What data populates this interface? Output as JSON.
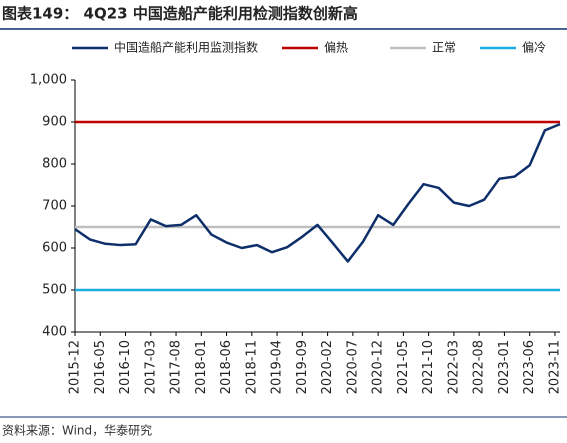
{
  "chart_data": {
    "type": "line",
    "title": "图表149： 4Q23 中国造船产能利用检测指数创新高",
    "source": "资料来源：Wind，华泰研究",
    "x": [
      "2015-12",
      "2016-03",
      "2016-06",
      "2016-09",
      "2016-12",
      "2017-03",
      "2017-06",
      "2017-09",
      "2017-12",
      "2018-03",
      "2018-06",
      "2018-09",
      "2018-12",
      "2019-03",
      "2019-06",
      "2019-09",
      "2019-12",
      "2020-03",
      "2020-06",
      "2020-09",
      "2020-12",
      "2021-03",
      "2021-06",
      "2021-09",
      "2021-12",
      "2022-03",
      "2022-06",
      "2022-09",
      "2022-12",
      "2023-03",
      "2023-06",
      "2023-09",
      "2023-12"
    ],
    "series": [
      {
        "name": "中国造船产能利用监测指数",
        "color": "#0f2f6b",
        "values": [
          645,
          620,
          610,
          607,
          609,
          668,
          652,
          655,
          678,
          632,
          613,
          600,
          607,
          590,
          602,
          627,
          655,
          612,
          568,
          615,
          678,
          655,
          705,
          752,
          743,
          708,
          700,
          715,
          765,
          770,
          797,
          880,
          895
        ]
      }
    ],
    "reference_lines": [
      {
        "name": "偏热",
        "color": "#c00000",
        "value": 900
      },
      {
        "name": "正常",
        "color": "#bfbfbf",
        "value": 650
      },
      {
        "name": "偏冷",
        "color": "#1aaee0",
        "value": 500
      }
    ],
    "xlim": [
      "2015-12",
      "2023-12"
    ],
    "xticks": [
      "2015-12",
      "2016-05",
      "2016-10",
      "2017-03",
      "2017-08",
      "2018-01",
      "2018-06",
      "2018-11",
      "2019-04",
      "2019-09",
      "2020-02",
      "2020-07",
      "2020-12",
      "2021-05",
      "2021-10",
      "2022-03",
      "2022-08",
      "2023-01",
      "2023-06",
      "2023-11"
    ],
    "ylim": [
      400,
      1000
    ],
    "yticks": [
      400,
      500,
      600,
      700,
      800,
      900,
      {
        "value": 1000,
        "label": "1,000"
      }
    ]
  }
}
